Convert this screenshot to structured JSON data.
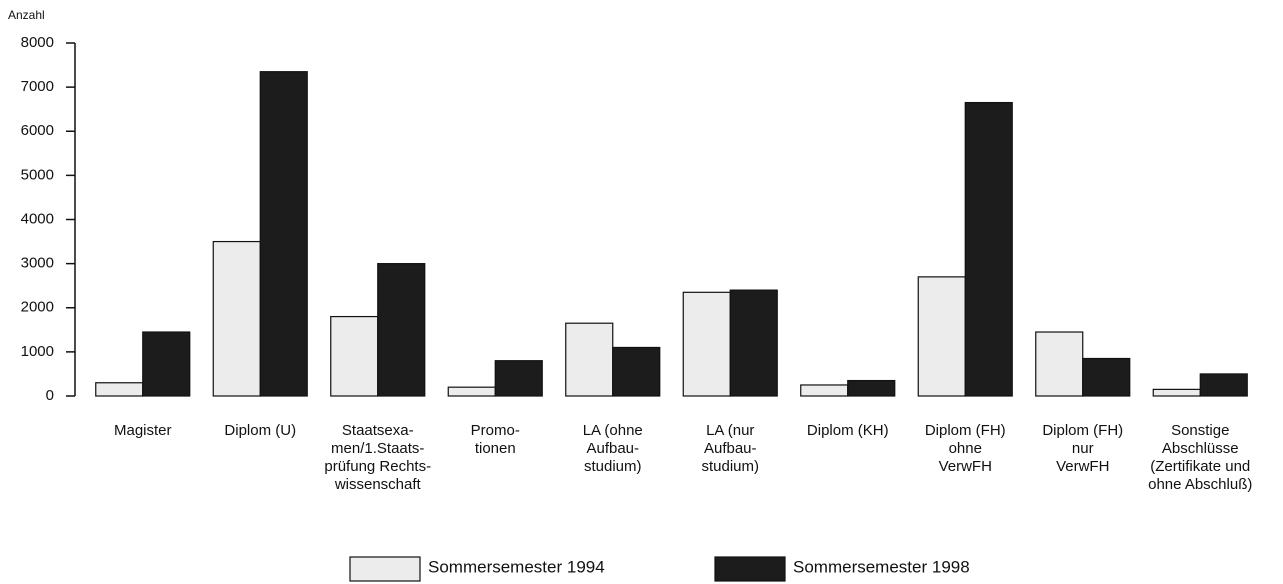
{
  "chart_data": {
    "type": "bar",
    "ylabel": "Anzahl",
    "categories": [
      [
        "Magister"
      ],
      [
        "Diplom (U)"
      ],
      [
        "Staatsexa-",
        "men/1.Staats-",
        "prüfung Rechts-",
        "wissenschaft"
      ],
      [
        "Promo-",
        "tionen"
      ],
      [
        "LA (ohne",
        "Aufbau-",
        "studium)"
      ],
      [
        "LA (nur",
        "Aufbau-",
        "studium)"
      ],
      [
        "Diplom (KH)"
      ],
      [
        "Diplom (FH)",
        "ohne",
        "VerwFH"
      ],
      [
        "Diplom (FH)",
        "nur",
        "VerwFH"
      ],
      [
        "Sonstige",
        "Abschlüsse",
        "(Zertifikate und",
        "ohne Abschluß)"
      ]
    ],
    "series": [
      {
        "name": "Sommersemester 1994",
        "color": "#ececec",
        "values": [
          300,
          3500,
          1800,
          200,
          1650,
          2350,
          250,
          2700,
          1450,
          150
        ]
      },
      {
        "name": "Sommersemester 1998",
        "color": "#1c1c1c",
        "values": [
          1450,
          7350,
          3000,
          800,
          1100,
          2400,
          350,
          6650,
          850,
          500
        ]
      }
    ],
    "ylim": [
      0,
      8000
    ],
    "yticks": [
      0,
      1000,
      2000,
      3000,
      4000,
      5000,
      6000,
      7000,
      8000
    ],
    "grid": false,
    "legend": "bottom"
  }
}
